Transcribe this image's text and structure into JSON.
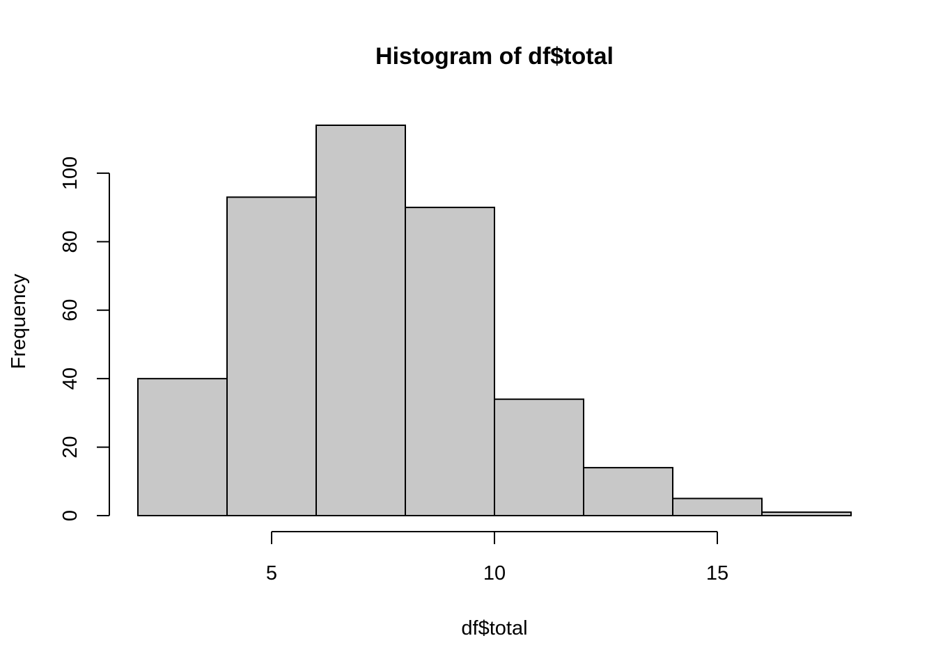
{
  "chart_data": {
    "type": "bar",
    "title": "Histogram of df$total",
    "xlabel": "df$total",
    "ylabel": "Frequency",
    "bins": [
      {
        "start": 2,
        "end": 4,
        "count": 40
      },
      {
        "start": 4,
        "end": 6,
        "count": 93
      },
      {
        "start": 6,
        "end": 8,
        "count": 114
      },
      {
        "start": 8,
        "end": 10,
        "count": 90
      },
      {
        "start": 10,
        "end": 12,
        "count": 34
      },
      {
        "start": 12,
        "end": 14,
        "count": 14
      },
      {
        "start": 14,
        "end": 16,
        "count": 5
      },
      {
        "start": 16,
        "end": 18,
        "count": 1
      }
    ],
    "x_ticks": [
      5,
      10,
      15
    ],
    "x_tick_labels": [
      "5",
      "10",
      "15"
    ],
    "y_ticks": [
      0,
      20,
      40,
      60,
      80,
      100
    ],
    "y_tick_labels": [
      "0",
      "20",
      "40",
      "60",
      "80",
      "100"
    ],
    "xlim": [
      2,
      18
    ],
    "ylim": [
      0,
      114
    ],
    "grid": false,
    "colors": {
      "bar_fill": "#c8c8c8",
      "bar_stroke": "#000000",
      "axis": "#000000",
      "background": "#ffffff"
    }
  }
}
